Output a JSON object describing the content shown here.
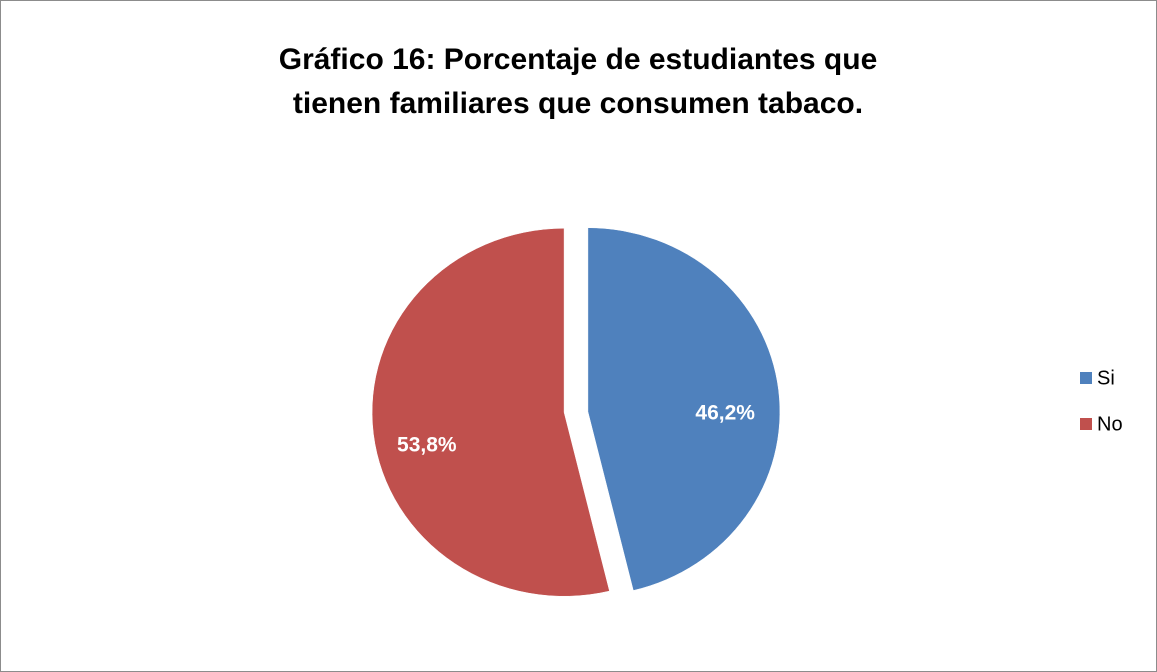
{
  "chart_data": {
    "type": "pie",
    "title": "Gráfico 16: Porcentaje de estudiantes que tienen familiares que consumen tabaco.",
    "categories": [
      "Si",
      "No"
    ],
    "values": [
      46.2,
      53.8
    ],
    "value_labels": [
      "46,2%",
      "53,8%"
    ],
    "colors": [
      "#4f81bd",
      "#c0504d"
    ],
    "legend": "right"
  }
}
